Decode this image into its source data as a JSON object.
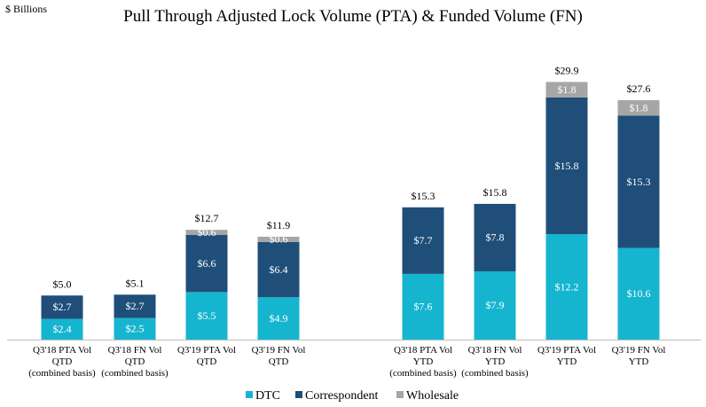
{
  "chart_data": {
    "type": "bar",
    "stacked": true,
    "title": "Pull Through Adjusted Lock Volume (PTA) & Funded Volume (FN)",
    "unit_label": "$ Billions",
    "categories": [
      [
        "Q3'18 PTA Vol",
        "QTD",
        "(combined basis)"
      ],
      [
        "Q3'18 FN  Vol",
        "QTD",
        "(combined basis)"
      ],
      [
        "Q3'19 PTA Vol",
        "QTD"
      ],
      [
        "Q3'19 FN  Vol",
        "QTD"
      ],
      [
        "Q3'18 PTA Vol",
        "YTD",
        "(combined basis)"
      ],
      [
        "Q3'18 FN  Vol",
        "YTD",
        "(combined basis)"
      ],
      [
        "Q3'19 PTA Vol",
        "YTD"
      ],
      [
        "Q3'19 FN  Vol",
        "YTD"
      ]
    ],
    "series": [
      {
        "name": "DTC",
        "color": "#16b5cf",
        "values": [
          2.4,
          2.5,
          5.5,
          4.9,
          7.6,
          7.9,
          12.2,
          10.6
        ],
        "labels": [
          "$2.4",
          "$2.5",
          "$5.5",
          "$4.9",
          "$7.6",
          "$7.9",
          "$12.2",
          "$10.6"
        ]
      },
      {
        "name": "Correspondent",
        "color": "#1f4e79",
        "values": [
          2.7,
          2.7,
          6.6,
          6.4,
          7.7,
          7.8,
          15.8,
          15.3
        ],
        "labels": [
          "$2.7",
          "$2.7",
          "$6.6",
          "$6.4",
          "$7.7",
          "$7.8",
          "$15.8",
          "$15.3"
        ]
      },
      {
        "name": "Wholesale",
        "color": "#a6a6a6",
        "values": [
          0,
          0,
          0.6,
          0.6,
          0,
          0,
          1.8,
          1.8
        ],
        "labels": [
          "",
          "",
          "$0.6",
          "$0.6",
          "",
          "",
          "$1.8",
          "$1.8"
        ]
      }
    ],
    "totals": [
      "$5.0",
      "$5.1",
      "$12.7",
      "$11.9",
      "$15.3",
      "$15.8",
      "$29.9",
      "$27.6"
    ],
    "ylim": [
      0,
      30
    ],
    "legend_position": "bottom"
  }
}
